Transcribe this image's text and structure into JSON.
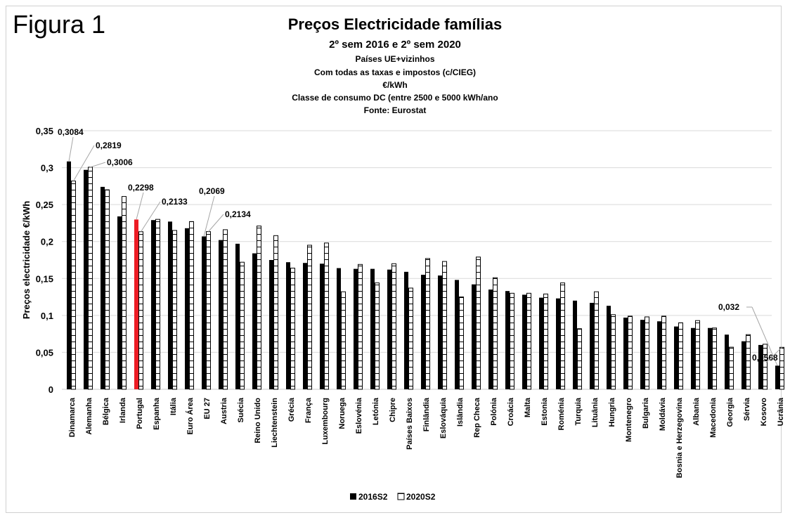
{
  "figure_label": "Figura 1",
  "chart_data": {
    "type": "bar",
    "title": "Preços Electricidade famílias",
    "subtitles": [
      "2º sem 2016 e 2º sem 2020",
      "Países UE+vizinhos",
      "Com todas as taxas e impostos (c/CIEG)",
      "€/kWh",
      "Classe de consumo DC (entre 2500 e 5000 kWh/ano",
      "Fonte: Eurostat"
    ],
    "xlabel": "",
    "ylabel": "Preços electricidade €/kWh",
    "ylim": [
      0,
      0.35
    ],
    "yticks": [
      "0",
      "0,05",
      "0,1",
      "0,15",
      "0,2",
      "0,25",
      "0,3",
      "0,35"
    ],
    "grid": true,
    "legend_position": "bottom",
    "highlight": {
      "category": "Portugal",
      "series": "2016S2",
      "color": "#ed1c24"
    },
    "categories": [
      "Dinamarca",
      "Alemanha",
      "Bélgica",
      "Irlanda",
      "Portugal",
      "Espanha",
      "Itália",
      "Euro Área",
      "EU 27",
      "Austria",
      "Suécia",
      "Reino Unido",
      "Liechtenstein",
      "Grécia",
      "França",
      "Luxembourg",
      "Noruega",
      "Eslovénia",
      "Letónia",
      "Chipre",
      "Países Baixos",
      "Finlândia",
      "Eslováquia",
      "Islândia",
      "Rep Checa",
      "Polónia",
      "Croácia",
      "Malta",
      "Estonia",
      "Roménia",
      "Turquia",
      "Lituânia",
      "Hungria",
      "Montenegro",
      "Bulgaria",
      "Moldávia",
      "Bosnia e Herzegovina",
      "Albania",
      "Macedonia",
      "Georgia",
      "Sérvia",
      "Kosovo",
      "Ucrânia"
    ],
    "series": [
      {
        "name": "2016S2",
        "values": [
          0.3084,
          0.297,
          0.274,
          0.234,
          0.2298,
          0.229,
          0.227,
          0.218,
          0.2069,
          0.202,
          0.197,
          0.184,
          0.175,
          0.172,
          0.171,
          0.17,
          0.164,
          0.163,
          0.163,
          0.162,
          0.159,
          0.155,
          0.154,
          0.148,
          0.142,
          0.135,
          0.133,
          0.128,
          0.124,
          0.123,
          0.12,
          0.117,
          0.113,
          0.097,
          0.094,
          0.092,
          0.085,
          0.083,
          0.083,
          0.074,
          0.065,
          0.06,
          0.032
        ]
      },
      {
        "name": "2020S2",
        "values": [
          0.2819,
          0.3006,
          0.27,
          0.261,
          0.2133,
          0.23,
          0.215,
          0.227,
          0.2134,
          0.216,
          0.172,
          0.221,
          0.208,
          0.164,
          0.195,
          0.198,
          0.132,
          0.169,
          0.144,
          0.17,
          0.137,
          0.177,
          0.173,
          0.125,
          0.179,
          0.151,
          0.13,
          0.13,
          0.129,
          0.144,
          0.082,
          0.132,
          0.101,
          0.099,
          0.098,
          0.099,
          0.09,
          0.093,
          0.083,
          0.057,
          0.074,
          0.061,
          0.0568
        ]
      }
    ],
    "annotations": [
      {
        "category": "Dinamarca",
        "series": "2016S2",
        "label": "0,3084"
      },
      {
        "category": "Dinamarca",
        "series": "2020S2",
        "label": "0,2819"
      },
      {
        "category": "Alemanha",
        "series": "2020S2",
        "label": "0,3006"
      },
      {
        "category": "Portugal",
        "series": "2016S2",
        "label": "0,2298"
      },
      {
        "category": "Portugal",
        "series": "2020S2",
        "label": "0,2133"
      },
      {
        "category": "EU 27",
        "series": "2016S2",
        "label": "0,2069"
      },
      {
        "category": "EU 27",
        "series": "2020S2",
        "label": "0,2134"
      },
      {
        "category": "Ucrânia",
        "series": "2016S2",
        "label": "0,032"
      },
      {
        "category": "Ucrânia",
        "series": "2020S2",
        "label": "0,0568"
      }
    ]
  }
}
